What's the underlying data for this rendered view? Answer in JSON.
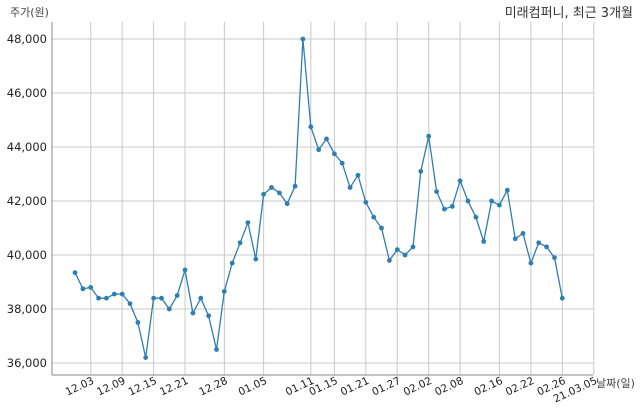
{
  "chart_data": {
    "type": "line",
    "title": "미래컴퍼니, 최근 3개월",
    "ylabel": "주가(원)",
    "xlabel": "날짜(일)",
    "ylim": [
      35500,
      49000
    ],
    "yticks": [
      36000,
      38000,
      40000,
      42000,
      44000,
      46000,
      48000
    ],
    "ytick_labels": [
      "36,000",
      "38,000",
      "40,000",
      "42,000",
      "44,000",
      "46,000",
      "48,000"
    ],
    "xtick_labels": [
      "12.03",
      "12.09",
      "12.15",
      "12.21",
      "12.28",
      "01.05",
      "01.11",
      "01.15",
      "01.21",
      "01.27",
      "02.02",
      "02.08",
      "02.16",
      "02.22",
      "02.26",
      "21.03.05"
    ],
    "xtick_index": [
      2,
      6,
      10,
      14,
      19,
      24,
      30,
      33,
      37,
      41,
      45,
      49,
      54,
      58,
      62,
      66
    ],
    "grid": true,
    "line_color": "#2e7eb2",
    "series": [
      {
        "values": [
          39350,
          38750,
          38800,
          38400,
          38400,
          38550,
          38550,
          38200,
          37500,
          36200,
          38400,
          38400,
          38000,
          38500,
          39450,
          37850,
          38400,
          37750,
          36500,
          38650,
          39700,
          40450,
          41200,
          39850,
          42250,
          42500,
          42300,
          41900,
          42550,
          48000,
          44750,
          43900,
          44300,
          43750,
          43400,
          42500,
          42950,
          41950,
          41400,
          41000,
          39800,
          40200,
          40000,
          40300,
          43100,
          44400,
          42350,
          41700,
          41800,
          42750,
          42000,
          41400,
          40500,
          42000,
          41850,
          42400,
          40600,
          40800,
          39700,
          40450,
          40300,
          39900,
          38400
        ]
      }
    ]
  }
}
